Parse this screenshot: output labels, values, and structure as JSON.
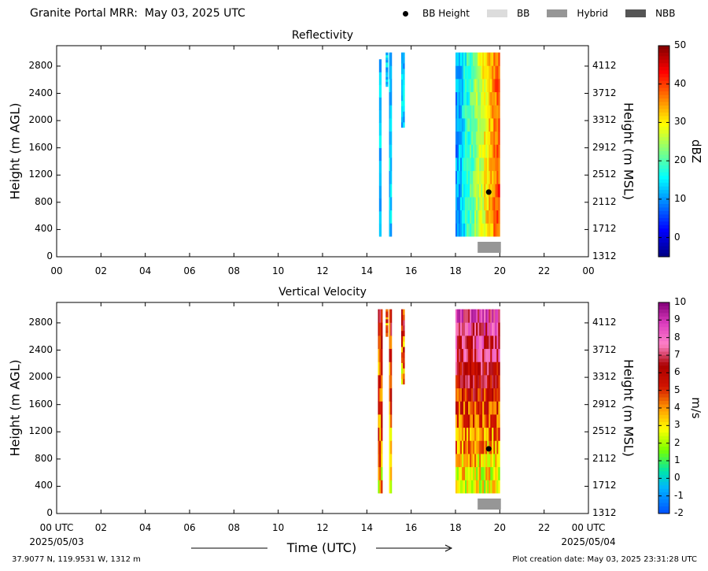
{
  "header": {
    "title": "Granite Portal MRR:  May 03, 2025 UTC",
    "legend": [
      {
        "label": "BB Height",
        "kind": "dot",
        "color": "#000000"
      },
      {
        "label": "BB",
        "kind": "box",
        "color": "#dcdcdc"
      },
      {
        "label": "Hybrid",
        "kind": "box",
        "color": "#969696"
      },
      {
        "label": "NBB",
        "kind": "box",
        "color": "#555555"
      }
    ]
  },
  "chart_data": [
    {
      "type": "heatmap",
      "title": "Reflectivity",
      "ylabel": "Height (m AGL)",
      "y2label": "Height (m MSL)",
      "colorbar_label": "dBZ",
      "colorbar_ticks": [
        "50",
        "40",
        "30",
        "20",
        "10",
        "0"
      ],
      "colorbar_range": [
        -5,
        50
      ],
      "x_ticks": [
        "00",
        "02",
        "04",
        "06",
        "08",
        "10",
        "12",
        "14",
        "16",
        "18",
        "20",
        "22",
        "00"
      ],
      "y_ticks": [
        "2800",
        "2400",
        "2000",
        "1600",
        "1200",
        "800",
        "400",
        "0"
      ],
      "y2_ticks": [
        "4112",
        "3712",
        "3312",
        "2912",
        "2512",
        "2112",
        "1712",
        "1312"
      ],
      "xlim": [
        0,
        24
      ],
      "ylim": [
        0,
        3100
      ],
      "bb_height_points": [
        {
          "x": 19.5,
          "y": 950
        }
      ],
      "hybrid_period": [
        19.0,
        20.05
      ],
      "echo_regions": [
        {
          "x0": 14.55,
          "x1": 14.65,
          "y0": 300,
          "y1": 2900
        },
        {
          "x0": 14.85,
          "x1": 14.95,
          "y0": 2500,
          "y1": 3000
        },
        {
          "x0": 15.0,
          "x1": 15.12,
          "y0": 300,
          "y1": 3000
        },
        {
          "x0": 15.55,
          "x1": 15.7,
          "y0": 1900,
          "y1": 3000
        },
        {
          "x0": 18.0,
          "x1": 20.0,
          "y0": 300,
          "y1": 3000
        }
      ]
    },
    {
      "type": "heatmap",
      "title": "Vertical Velocity",
      "ylabel": "Height (m AGL)",
      "y2label": "Height (m MSL)",
      "xlabel": "Time (UTC)",
      "colorbar_label": "m/s",
      "colorbar_ticks": [
        "10",
        "9",
        "8",
        "7",
        "6",
        "5",
        "4",
        "3",
        "2",
        "1",
        "0",
        "-1",
        "-2"
      ],
      "colorbar_range": [
        -2,
        10
      ],
      "x_ticks": [
        "00 UTC",
        "02",
        "04",
        "06",
        "08",
        "10",
        "12",
        "14",
        "16",
        "18",
        "20",
        "22",
        "00 UTC"
      ],
      "x_start_date": "2025/05/03",
      "x_end_date": "2025/05/04",
      "y_ticks": [
        "2800",
        "2400",
        "2000",
        "1600",
        "1200",
        "800",
        "400",
        "0"
      ],
      "y2_ticks": [
        "4112",
        "3712",
        "3312",
        "2912",
        "2512",
        "2112",
        "1712",
        "1312"
      ],
      "xlim": [
        0,
        24
      ],
      "ylim": [
        0,
        3100
      ],
      "bb_height_points": [
        {
          "x": 19.5,
          "y": 950
        }
      ],
      "hybrid_period": [
        19.0,
        20.05
      ],
      "echo_regions": [
        {
          "x0": 14.5,
          "x1": 14.7,
          "y0": 300,
          "y1": 3000
        },
        {
          "x0": 14.85,
          "x1": 14.95,
          "y0": 2600,
          "y1": 3000
        },
        {
          "x0": 15.0,
          "x1": 15.12,
          "y0": 300,
          "y1": 3000
        },
        {
          "x0": 15.55,
          "x1": 15.7,
          "y0": 1900,
          "y1": 3000
        },
        {
          "x0": 18.0,
          "x1": 20.0,
          "y0": 300,
          "y1": 3000
        }
      ]
    }
  ],
  "footer": {
    "location": "37.9077 N, 119.9531 W, 1312 m",
    "created": "Plot creation date: May 03, 2025 23:31:28 UTC"
  }
}
